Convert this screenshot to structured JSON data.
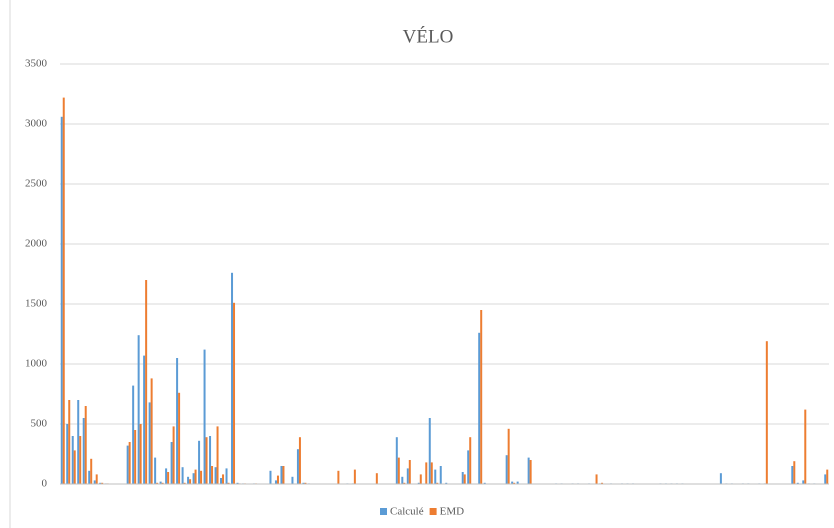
{
  "chart_data": {
    "type": "bar",
    "title": "VÉLO",
    "categories": [
      null,
      null,
      null,
      null,
      null,
      null,
      null,
      null,
      null,
      null,
      null,
      null,
      null,
      null,
      null,
      null,
      null,
      null,
      null,
      null,
      null,
      null,
      null,
      null,
      null,
      null,
      null,
      null,
      null,
      null,
      null,
      null,
      null,
      null,
      null,
      null,
      null,
      null,
      null,
      null,
      null,
      null,
      null,
      null,
      null,
      null,
      null,
      null,
      null,
      null,
      null,
      null,
      null,
      null,
      null,
      null,
      null,
      null,
      null,
      null,
      null,
      null,
      null,
      null,
      null,
      null,
      null,
      null,
      null,
      null,
      null,
      null,
      null,
      null,
      null,
      null,
      null,
      null,
      null,
      null,
      null,
      null,
      null,
      null,
      null,
      null,
      null,
      null,
      null,
      null,
      null,
      null,
      null,
      null,
      null,
      null,
      null,
      null,
      null,
      null,
      null,
      null,
      null,
      null,
      null,
      null,
      null,
      null,
      null,
      null,
      null,
      null,
      null,
      null,
      null,
      null,
      null,
      null,
      null,
      null,
      null,
      null,
      null,
      null,
      null,
      null,
      null,
      null,
      null,
      null,
      null,
      null,
      null,
      null,
      null,
      null,
      null,
      null,
      null,
      null
    ],
    "series": [
      {
        "name": "Calculé",
        "color": "#5b9bd5",
        "values": [
          3060,
          500,
          400,
          700,
          550,
          110,
          30,
          10,
          5,
          0,
          0,
          0,
          320,
          820,
          1240,
          1070,
          680,
          220,
          20,
          130,
          350,
          1050,
          140,
          60,
          90,
          360,
          1120,
          400,
          140,
          50,
          130,
          1760,
          10,
          5,
          0,
          5,
          0,
          0,
          110,
          30,
          150,
          0,
          60,
          290,
          10,
          5,
          0,
          0,
          0,
          0,
          0,
          0,
          5,
          5,
          0,
          0,
          0,
          0,
          0,
          0,
          0,
          390,
          60,
          130,
          0,
          10,
          0,
          550,
          120,
          150,
          10,
          0,
          0,
          100,
          280,
          0,
          1260,
          10,
          0,
          0,
          0,
          240,
          20,
          20,
          0,
          220,
          0,
          0,
          0,
          0,
          5,
          5,
          0,
          5,
          5,
          0,
          5,
          0,
          5,
          0,
          5,
          0,
          5,
          5,
          5,
          0,
          0,
          0,
          0,
          5,
          5,
          5,
          5,
          5,
          0,
          0,
          0,
          0,
          0,
          0,
          90,
          5,
          5,
          0,
          5,
          5,
          0,
          5,
          5,
          0,
          0,
          0,
          0,
          150,
          10,
          30,
          5,
          5,
          0,
          80
        ]
      },
      {
        "name": "EMD",
        "color": "#ed7d31",
        "values": [
          3220,
          700,
          280,
          400,
          650,
          210,
          80,
          10,
          5,
          0,
          0,
          0,
          350,
          450,
          500,
          1700,
          880,
          10,
          10,
          100,
          480,
          760,
          10,
          40,
          120,
          110,
          390,
          150,
          480,
          80,
          10,
          1510,
          5,
          5,
          0,
          5,
          0,
          0,
          0,
          70,
          150,
          0,
          0,
          390,
          10,
          0,
          0,
          0,
          0,
          0,
          110,
          0,
          0,
          120,
          0,
          0,
          0,
          90,
          0,
          0,
          0,
          220,
          10,
          200,
          0,
          80,
          180,
          180,
          10,
          0,
          0,
          0,
          0,
          80,
          390,
          0,
          1450,
          0,
          0,
          0,
          0,
          460,
          10,
          0,
          0,
          200,
          0,
          0,
          0,
          0,
          0,
          0,
          0,
          0,
          0,
          0,
          0,
          80,
          10,
          0,
          0,
          0,
          0,
          0,
          0,
          0,
          0,
          0,
          0,
          0,
          0,
          0,
          0,
          0,
          0,
          0,
          0,
          0,
          0,
          0,
          0,
          0,
          0,
          0,
          0,
          0,
          0,
          0,
          1190,
          0,
          0,
          0,
          0,
          190,
          0,
          620,
          0,
          0,
          0,
          120
        ]
      }
    ],
    "ylim": [
      0,
      3500
    ],
    "yticks": [
      0,
      500,
      1000,
      1500,
      2000,
      2500,
      3000,
      3500
    ],
    "grid": true,
    "legend": "bottom"
  }
}
